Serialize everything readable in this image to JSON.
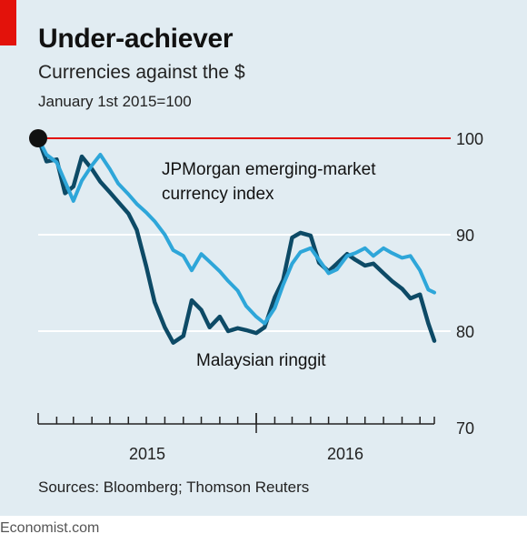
{
  "title": "Under-achiever",
  "subtitle": "Currencies against the $",
  "note": "January 1st 2015=100",
  "source": "Sources: Bloomberg; Thomson Reuters",
  "brand": "Economist.com",
  "colors": {
    "background": "#e1ecf2",
    "accent_red": "#e3120b",
    "baseline_red": "#e3120b",
    "jpmorgan": "#2ea6d9",
    "ringgit": "#0d4a66",
    "grid": "#ffffff",
    "start_dot": "#111111"
  },
  "chart_data": {
    "type": "line",
    "title": "Under-achiever",
    "subtitle": "Currencies against the $",
    "note": "January 1st 2015=100",
    "y_range": [
      70,
      100
    ],
    "y_ticks": [
      100,
      90,
      80,
      70
    ],
    "x_range": [
      "2015-01-01",
      "2016-10-25"
    ],
    "x_tick_labels": [
      "2015",
      "2016"
    ],
    "grid": true,
    "reference_line": 100,
    "annotations": [
      "JPMorgan emerging-market currency index",
      "Malaysian ringgit"
    ],
    "series": [
      {
        "name": "JPMorgan emerging-market currency index",
        "dates": [
          "2015-01-01",
          "2015-01-15",
          "2015-02-01",
          "2015-02-15",
          "2015-03-01",
          "2015-03-15",
          "2015-04-01",
          "2015-04-15",
          "2015-05-01",
          "2015-05-15",
          "2015-06-01",
          "2015-06-15",
          "2015-07-01",
          "2015-07-15",
          "2015-08-01",
          "2015-08-15",
          "2015-09-01",
          "2015-09-15",
          "2015-10-01",
          "2015-10-15",
          "2015-11-01",
          "2015-11-15",
          "2015-12-01",
          "2015-12-15",
          "2016-01-01",
          "2016-01-15",
          "2016-02-01",
          "2016-02-15",
          "2016-03-01",
          "2016-03-15",
          "2016-04-01",
          "2016-04-15",
          "2016-05-01",
          "2016-05-15",
          "2016-06-01",
          "2016-06-15",
          "2016-07-01",
          "2016-07-15",
          "2016-08-01",
          "2016-08-15",
          "2016-09-01",
          "2016-09-15",
          "2016-10-01",
          "2016-10-15",
          "2016-10-25"
        ],
        "values": [
          100,
          98.3,
          97.5,
          95.5,
          93.5,
          95.6,
          97.2,
          98.3,
          96.8,
          95.3,
          94.2,
          93.2,
          92.3,
          91.4,
          90.0,
          88.4,
          87.8,
          86.3,
          88.0,
          87.2,
          86.2,
          85.2,
          84.2,
          82.6,
          81.5,
          80.8,
          82.4,
          84.8,
          87.0,
          88.2,
          88.6,
          87.4,
          86.0,
          86.4,
          87.8,
          88.1,
          88.6,
          87.8,
          88.6,
          88.1,
          87.6,
          87.8,
          86.3,
          84.3,
          84.0
        ]
      },
      {
        "name": "Malaysian ringgit",
        "dates": [
          "2015-01-01",
          "2015-01-15",
          "2015-02-01",
          "2015-02-15",
          "2015-03-01",
          "2015-03-15",
          "2015-04-01",
          "2015-04-15",
          "2015-05-01",
          "2015-05-15",
          "2015-06-01",
          "2015-06-15",
          "2015-07-01",
          "2015-07-15",
          "2015-08-01",
          "2015-08-15",
          "2015-09-01",
          "2015-09-15",
          "2015-10-01",
          "2015-10-15",
          "2015-11-01",
          "2015-11-15",
          "2015-12-01",
          "2015-12-15",
          "2016-01-01",
          "2016-01-15",
          "2016-02-01",
          "2016-02-15",
          "2016-03-01",
          "2016-03-15",
          "2016-04-01",
          "2016-04-15",
          "2016-05-01",
          "2016-05-15",
          "2016-06-01",
          "2016-06-15",
          "2016-07-01",
          "2016-07-15",
          "2016-08-01",
          "2016-08-15",
          "2016-09-01",
          "2016-09-15",
          "2016-10-01",
          "2016-10-15",
          "2016-10-25"
        ],
        "values": [
          100,
          97.6,
          97.8,
          94.3,
          95.0,
          98.1,
          96.8,
          95.5,
          94.4,
          93.4,
          92.2,
          90.5,
          86.7,
          83.0,
          80.4,
          78.8,
          79.5,
          83.2,
          82.2,
          80.4,
          81.5,
          80.0,
          80.3,
          80.1,
          79.8,
          80.4,
          83.5,
          85.3,
          89.7,
          90.2,
          89.9,
          87.1,
          86.2,
          87.0,
          88.0,
          87.4,
          86.8,
          87.0,
          86.0,
          85.2,
          84.4,
          83.4,
          83.8,
          80.8,
          79.0
        ]
      }
    ]
  }
}
